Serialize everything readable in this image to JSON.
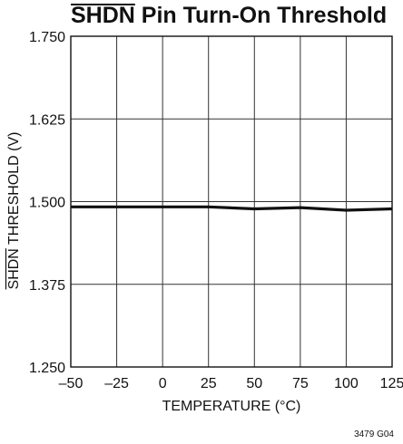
{
  "chart_data": {
    "type": "line",
    "title_overlined": "SHDN",
    "title_rest": " Pin Turn-On Threshold",
    "xlabel": "TEMPERATURE (°C)",
    "ylabel_overlined": "SHDN",
    "ylabel_rest": " THRESHOLD (V)",
    "x_ticks": [
      "–50",
      "–25",
      "0",
      "25",
      "50",
      "75",
      "100",
      "125"
    ],
    "y_ticks": [
      "1.250",
      "1.375",
      "1.500",
      "1.625",
      "1.750"
    ],
    "xlim": [
      -50,
      125
    ],
    "ylim": [
      1.25,
      1.75
    ],
    "grid": true,
    "series": [
      {
        "x": [
          -50,
          -25,
          0,
          25,
          50,
          75,
          100,
          125
        ],
        "y": [
          1.492,
          1.492,
          1.492,
          1.492,
          1.489,
          1.491,
          1.487,
          1.489
        ]
      }
    ]
  },
  "figure_id": "3479 G04"
}
